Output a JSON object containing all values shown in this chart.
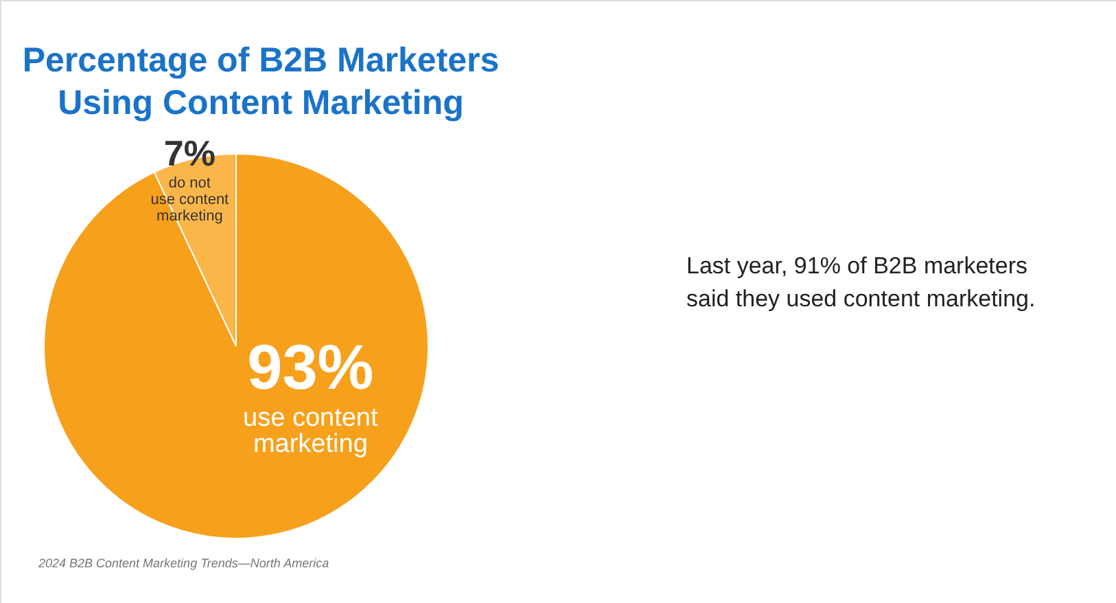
{
  "chart_data": {
    "type": "pie",
    "title": "Percentage of B2B Marketers\nUsing Content Marketing",
    "categories": [
      "use content\nmarketing",
      "do not\nuse content\nmarketing"
    ],
    "values": [
      93,
      7
    ],
    "value_labels": [
      "93%",
      "7%"
    ],
    "colors": [
      "#f7a01c",
      "#fbb64a"
    ],
    "annotations": [
      "Last year, 91% of B2B marketers\nsaid they used content marketing.",
      "2024 B2B Content Marketing Trends—North America"
    ]
  }
}
